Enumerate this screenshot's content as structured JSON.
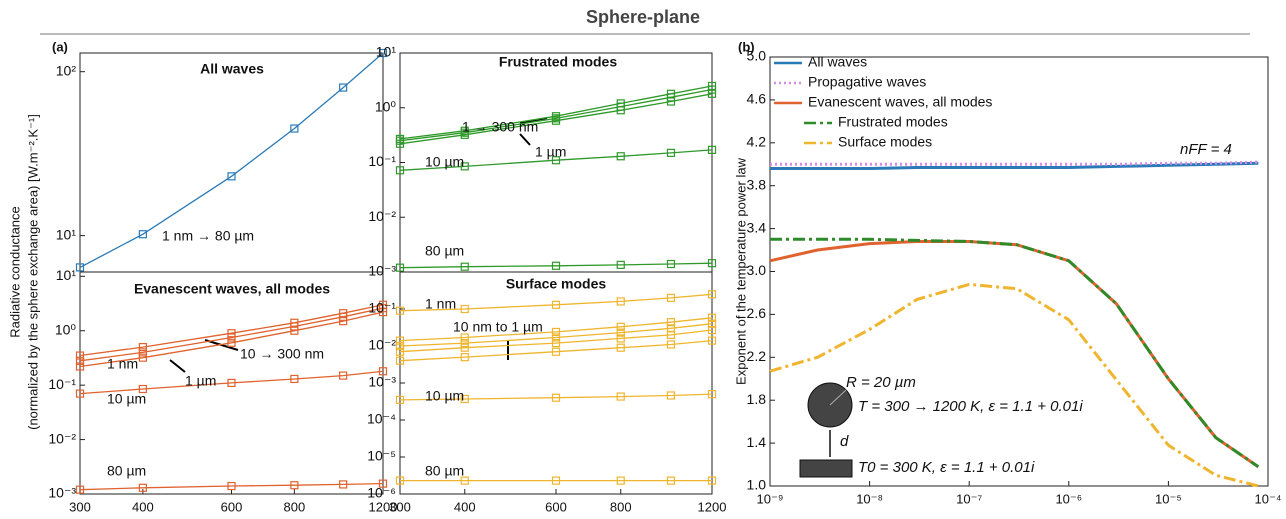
{
  "figure": {
    "title": "Sphere-plane",
    "panel_labels": [
      "(a)",
      "(b)"
    ],
    "ylabel_a": [
      "Radiative conductance",
      "(normalized by the sphere exchange area) [W.m⁻².K⁻¹]"
    ]
  },
  "chart_data": [
    {
      "type": "line",
      "title": "All waves",
      "xscale": "log",
      "yscale": "log",
      "markers": true,
      "x": [
        300,
        400,
        600,
        800,
        1000,
        1200
      ],
      "xlim": [
        300,
        1200
      ],
      "ylim": [
        6,
        130
      ],
      "yticks": [
        {
          "value": 10,
          "label": "10¹"
        },
        {
          "value": 100,
          "label": "10²"
        }
      ],
      "series": [
        {
          "color": "#2a7ab8",
          "linestyle": "solid",
          "values": [
            6.4,
            10.2,
            23,
            45,
            80,
            130
          ]
        }
      ],
      "annotations": [
        "1 nm → 80 µm"
      ]
    },
    {
      "type": "line",
      "title": "Frustrated modes",
      "xscale": "log",
      "yscale": "log",
      "markers": true,
      "x": [
        300,
        400,
        600,
        800,
        1000,
        1200
      ],
      "xlim": [
        300,
        1200
      ],
      "ylim": [
        0.001,
        10
      ],
      "yticks": [
        {
          "value": 0.001,
          "label": "10⁻³"
        },
        {
          "value": 0.01,
          "label": "10⁻²"
        },
        {
          "value": 0.1,
          "label": "10⁻¹"
        },
        {
          "value": 1,
          "label": "10⁰"
        },
        {
          "value": 10,
          "label": "10¹"
        }
      ],
      "series": [
        {
          "color": "#2f9a2a",
          "linestyle": "solid",
          "values": [
            0.27,
            0.38,
            0.7,
            1.2,
            1.8,
            2.5
          ]
        },
        {
          "color": "#2f9a2a",
          "linestyle": "solid",
          "values": [
            0.25,
            0.35,
            0.64,
            1.05,
            1.55,
            2.15
          ]
        },
        {
          "color": "#2f9a2a",
          "linestyle": "solid",
          "values": [
            0.22,
            0.32,
            0.58,
            0.9,
            1.3,
            1.8
          ]
        },
        {
          "color": "#2f9a2a",
          "linestyle": "solid",
          "values": [
            0.072,
            0.085,
            0.11,
            0.13,
            0.15,
            0.17
          ]
        },
        {
          "color": "#2f9a2a",
          "linestyle": "solid",
          "values": [
            0.0012,
            0.00125,
            0.0013,
            0.00135,
            0.0014,
            0.00145
          ]
        }
      ],
      "annotations": [
        "1 → 300 nm",
        "1 µm",
        "10 µm",
        "80 µm"
      ]
    },
    {
      "type": "line",
      "title": "Evanescent waves, all modes",
      "xscale": "log",
      "yscale": "log",
      "markers": true,
      "x": [
        300,
        400,
        600,
        800,
        1000,
        1200
      ],
      "xlim": [
        300,
        1200
      ],
      "ylim": [
        0.001,
        12
      ],
      "xticks": [
        300,
        400,
        600,
        800,
        1200
      ],
      "yticks": [
        {
          "value": 0.001,
          "label": "10⁻³"
        },
        {
          "value": 0.01,
          "label": "10⁻²"
        },
        {
          "value": 0.1,
          "label": "10⁻¹"
        },
        {
          "value": 1,
          "label": "10⁰"
        },
        {
          "value": 10,
          "label": "10¹"
        }
      ],
      "series": [
        {
          "color": "#e0622e",
          "linestyle": "solid",
          "values": [
            0.35,
            0.5,
            0.9,
            1.4,
            2.1,
            3.0
          ]
        },
        {
          "color": "#e0622e",
          "linestyle": "solid",
          "values": [
            0.28,
            0.4,
            0.75,
            1.2,
            1.8,
            2.6
          ]
        },
        {
          "color": "#e0622e",
          "linestyle": "solid",
          "values": [
            0.22,
            0.32,
            0.6,
            1.0,
            1.5,
            2.2
          ]
        },
        {
          "color": "#e0622e",
          "linestyle": "solid",
          "values": [
            0.07,
            0.085,
            0.11,
            0.13,
            0.15,
            0.18
          ]
        },
        {
          "color": "#e0622e",
          "linestyle": "solid",
          "values": [
            0.0012,
            0.0013,
            0.0014,
            0.00145,
            0.0015,
            0.00155
          ]
        }
      ],
      "annotations": [
        "1 nm",
        "10 → 300 nm",
        "1 µm",
        "10 µm",
        "80 µm"
      ]
    },
    {
      "type": "line",
      "title": "Surface modes",
      "xscale": "log",
      "yscale": "log",
      "markers": true,
      "x": [
        300,
        400,
        600,
        800,
        1000,
        1200
      ],
      "xlim": [
        300,
        1200
      ],
      "ylim": [
        1e-06,
        1
      ],
      "xticks": [
        300,
        400,
        600,
        800,
        1200
      ],
      "yticks": [
        {
          "value": 1e-06,
          "label": "10⁻⁶"
        },
        {
          "value": 1e-05,
          "label": "10⁻⁵"
        },
        {
          "value": 0.0001,
          "label": "10⁻⁴"
        },
        {
          "value": 0.001,
          "label": "10⁻³"
        },
        {
          "value": 0.01,
          "label": "10⁻²"
        },
        {
          "value": 0.1,
          "label": "10⁻¹"
        }
      ],
      "series": [
        {
          "color": "#f0b52e",
          "linestyle": "solid",
          "values": [
            0.09,
            0.1,
            0.13,
            0.16,
            0.2,
            0.25
          ]
        },
        {
          "color": "#f0b52e",
          "linestyle": "solid",
          "values": [
            0.014,
            0.017,
            0.024,
            0.033,
            0.044,
            0.058
          ]
        },
        {
          "color": "#f0b52e",
          "linestyle": "solid",
          "values": [
            0.01,
            0.012,
            0.017,
            0.023,
            0.03,
            0.04
          ]
        },
        {
          "color": "#f0b52e",
          "linestyle": "solid",
          "values": [
            0.007,
            0.009,
            0.012,
            0.016,
            0.02,
            0.027
          ]
        },
        {
          "color": "#f0b52e",
          "linestyle": "solid",
          "values": [
            0.004,
            0.005,
            0.007,
            0.009,
            0.011,
            0.014
          ]
        },
        {
          "color": "#f0b52e",
          "linestyle": "solid",
          "values": [
            0.00035,
            0.00037,
            0.0004,
            0.00043,
            0.00046,
            0.0005
          ]
        },
        {
          "color": "#f0b52e",
          "linestyle": "solid",
          "values": [
            2.3e-06,
            2.3e-06,
            2.3e-06,
            2.3e-06,
            2.3e-06,
            2.3e-06
          ]
        }
      ],
      "annotations": [
        "1 nm",
        "10 nm to 1 µm",
        "10 µm",
        "80 µm"
      ]
    },
    {
      "type": "line",
      "xscale": "log",
      "yscale": "linear",
      "markers": false,
      "ylabel": "Exponent of the temperature power law",
      "legend": "upper-left",
      "x": [
        1e-09,
        3e-09,
        1e-08,
        3e-08,
        1e-07,
        3e-07,
        1e-06,
        3e-06,
        1e-05,
        3e-05,
        8e-05
      ],
      "xlim": [
        1e-09,
        0.0001
      ],
      "ylim": [
        1,
        5
      ],
      "xticks": [
        {
          "value": 1e-09,
          "label": "10⁻⁹"
        },
        {
          "value": 1e-08,
          "label": "10⁻⁸"
        },
        {
          "value": 1e-07,
          "label": "10⁻⁷"
        },
        {
          "value": 1e-06,
          "label": "10⁻⁶"
        },
        {
          "value": 1e-05,
          "label": "10⁻⁵"
        },
        {
          "value": 0.0001,
          "label": "10⁻⁴"
        }
      ],
      "yticks": [
        {
          "value": 1,
          "label": "1.0"
        },
        1.4,
        1.8,
        2.2,
        2.6,
        {
          "value": 3,
          "label": "3.0"
        },
        3.4,
        3.8,
        4.2,
        4.6,
        {
          "value": 5,
          "label": "5.0"
        }
      ],
      "series": [
        {
          "name": "All waves",
          "color": "#2a7ab8",
          "linestyle": "solid",
          "values": [
            3.96,
            3.96,
            3.96,
            3.97,
            3.97,
            3.97,
            3.97,
            3.98,
            3.99,
            4.0,
            4.01
          ]
        },
        {
          "name": "Propagative waves",
          "color": "#d58be8",
          "linestyle": "dotted",
          "values": [
            4.0,
            4.0,
            4.0,
            4.0,
            4.0,
            4.0,
            4.0,
            4.0,
            4.01,
            4.01,
            4.02
          ]
        },
        {
          "name": "Evanescent waves, all modes",
          "color": "#e0622e",
          "linestyle": "solid",
          "values": [
            3.1,
            3.2,
            3.26,
            3.28,
            3.28,
            3.25,
            3.1,
            2.7,
            2.0,
            1.45,
            1.18
          ]
        },
        {
          "name": "Frustrated modes",
          "color": "#2f8a2a",
          "linestyle": "dashdot",
          "values": [
            3.3,
            3.3,
            3.3,
            3.29,
            3.28,
            3.25,
            3.1,
            2.7,
            2.0,
            1.45,
            1.18
          ]
        },
        {
          "name": "Surface modes",
          "color": "#f0b52e",
          "linestyle": "dashdot",
          "values": [
            2.07,
            2.2,
            2.46,
            2.74,
            2.88,
            2.84,
            2.55,
            1.99,
            1.38,
            1.1,
            1.0
          ]
        }
      ],
      "annotations": [
        "nFF = 4",
        "R = 20 µm",
        "T = 300 → 1200 K, ε = 1.1 + 0.01i",
        "d",
        "T0 = 300 K, ε = 1.1 + 0.01i"
      ]
    }
  ]
}
